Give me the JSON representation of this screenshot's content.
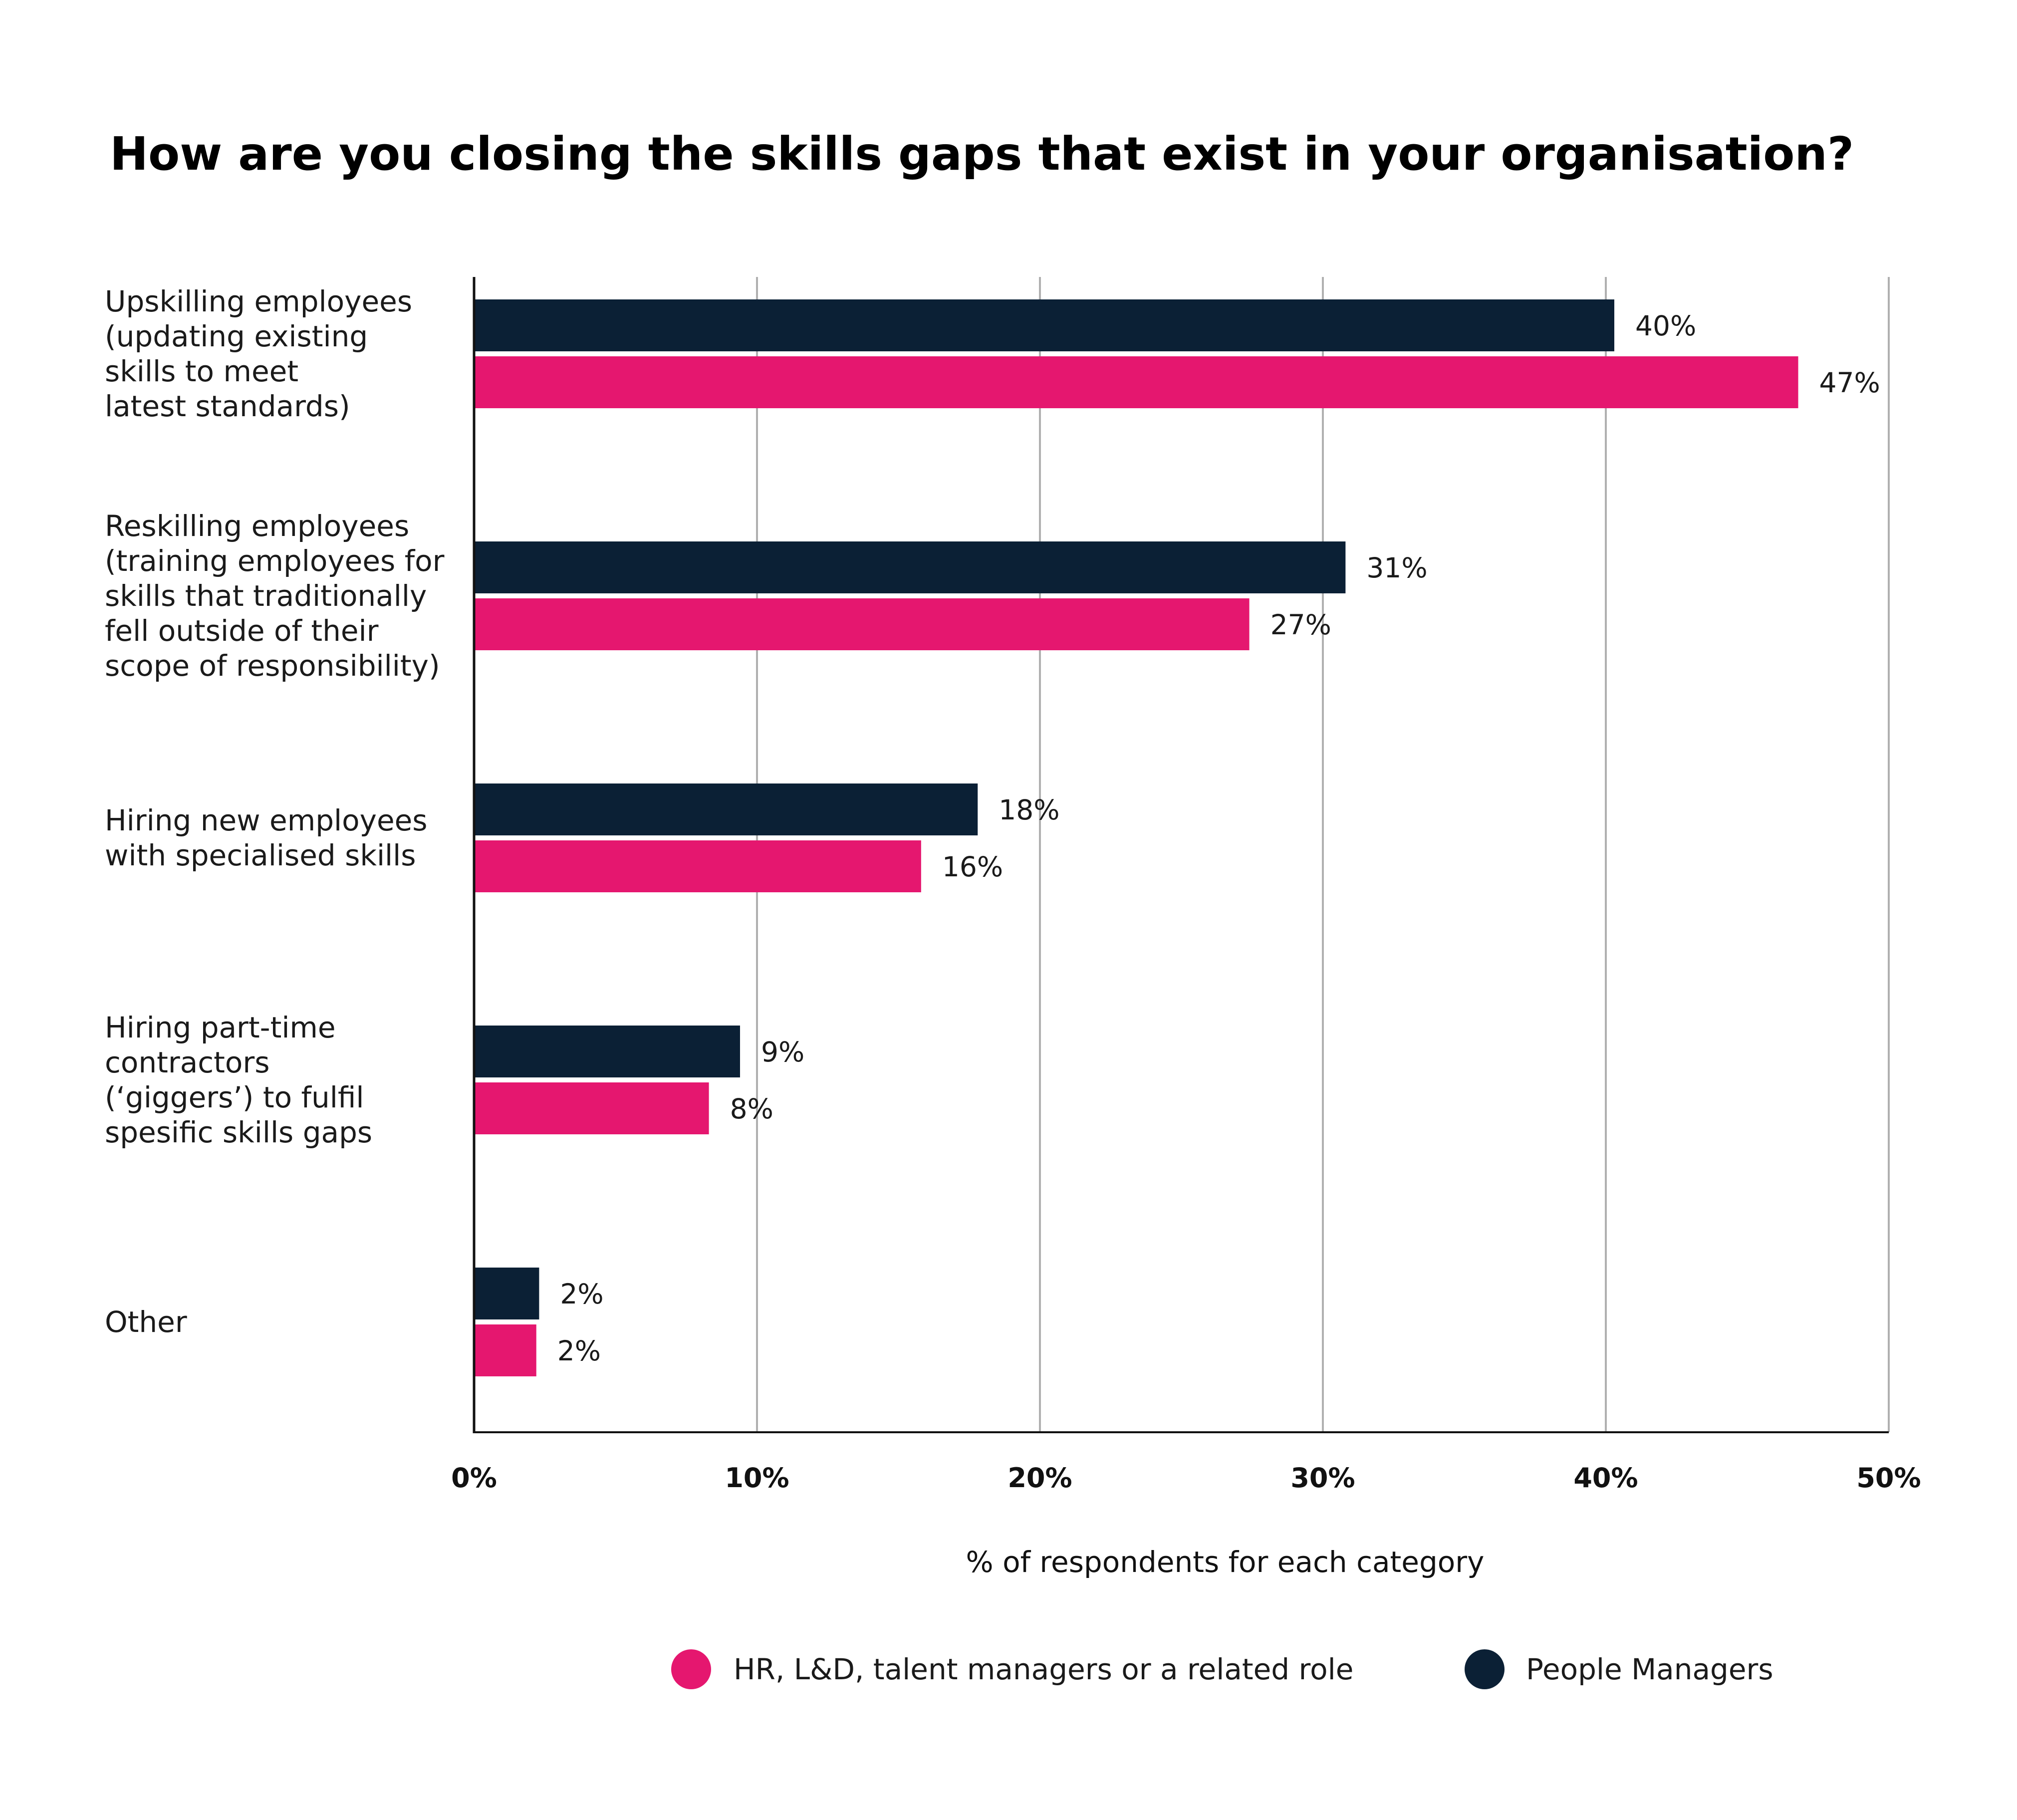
{
  "colors": {
    "hr_pink": "#E5176F",
    "managers_navy": "#0B2035",
    "grid": "#B0B0B0",
    "axis": "#111111"
  },
  "chart_data": {
    "type": "bar",
    "orientation": "horizontal",
    "title": "How are you closing the skills gaps that exist in your organisation?",
    "xlabel": "% of respondents for each category",
    "xlim": [
      0,
      50
    ],
    "xticks": [
      "0%",
      "10%",
      "20%",
      "30%",
      "40%",
      "50%"
    ],
    "grid": true,
    "legend_position": "bottom",
    "categories": [
      [
        "Upskilling employees",
        "(updating existing",
        "skills to meet",
        "latest standards)"
      ],
      [
        "Reskilling employees",
        "(training employees for",
        "skills that traditionally",
        "fell outside of their",
        "scope of responsibility)"
      ],
      [
        "Hiring new employees",
        "with specialised skills"
      ],
      [
        "Hiring part-time",
        "contractors",
        "(‘giggers’) to fulfil",
        "spesific skills gaps"
      ],
      [
        "Other"
      ]
    ],
    "series": [
      {
        "name": "People Managers",
        "color": "#0B2035",
        "values": [
          40.3,
          30.8,
          17.8,
          9.4,
          2.3
        ],
        "labels": [
          "40%",
          "31%",
          "18%",
          "9%",
          "2%"
        ]
      },
      {
        "name": "HR, L&D, talent managers or a related role",
        "color": "#E5176F",
        "values": [
          46.8,
          27.4,
          15.8,
          8.3,
          2.2
        ],
        "labels": [
          "47%",
          "27%",
          "16%",
          "8%",
          "2%"
        ]
      }
    ],
    "legend": [
      {
        "name": "HR, L&D, talent managers or a related role",
        "color": "#E5176F"
      },
      {
        "name": "People Managers",
        "color": "#0B2035"
      }
    ]
  }
}
